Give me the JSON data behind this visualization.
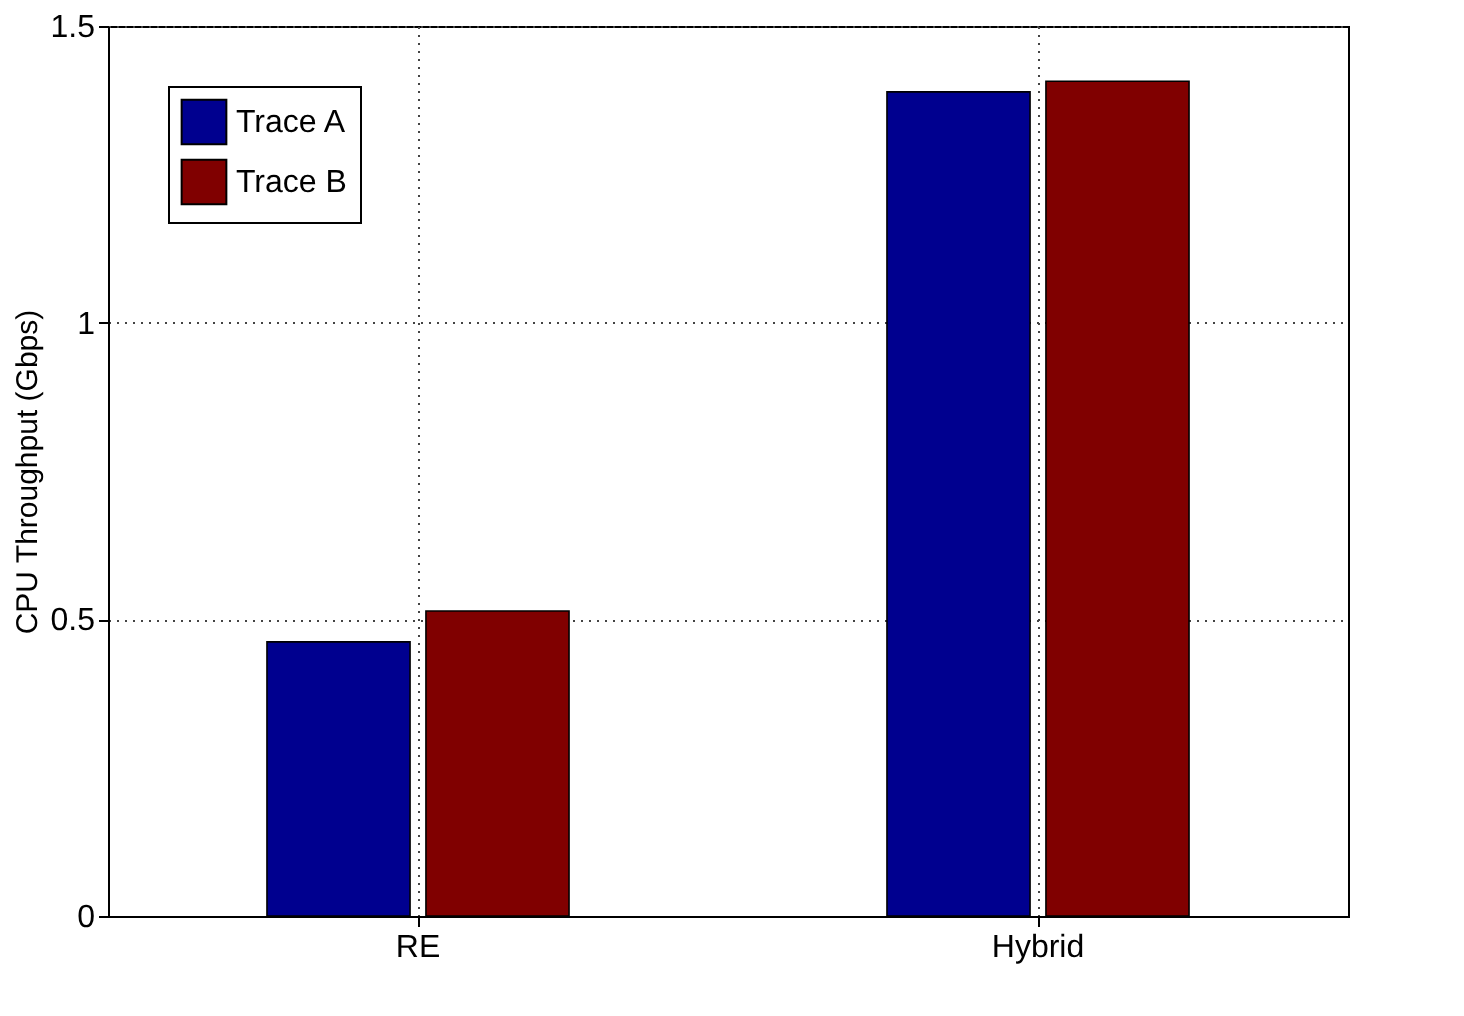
{
  "chart_data": {
    "type": "bar",
    "ylabel": "CPU Throughput (Gbps)",
    "categories": [
      "RE",
      "Hybrid"
    ],
    "series": [
      {
        "name": "Trace A",
        "color": "#00008f",
        "values": [
          0.462,
          1.389
        ]
      },
      {
        "name": "Trace B",
        "color": "#800000",
        "values": [
          0.514,
          1.407
        ]
      }
    ],
    "ylim": [
      0,
      1.5
    ],
    "yticks": [
      {
        "value": 0,
        "label": "0"
      },
      0.5,
      {
        "value": 1,
        "label": "1"
      },
      1.5
    ],
    "grid": true,
    "legend": "top left"
  }
}
